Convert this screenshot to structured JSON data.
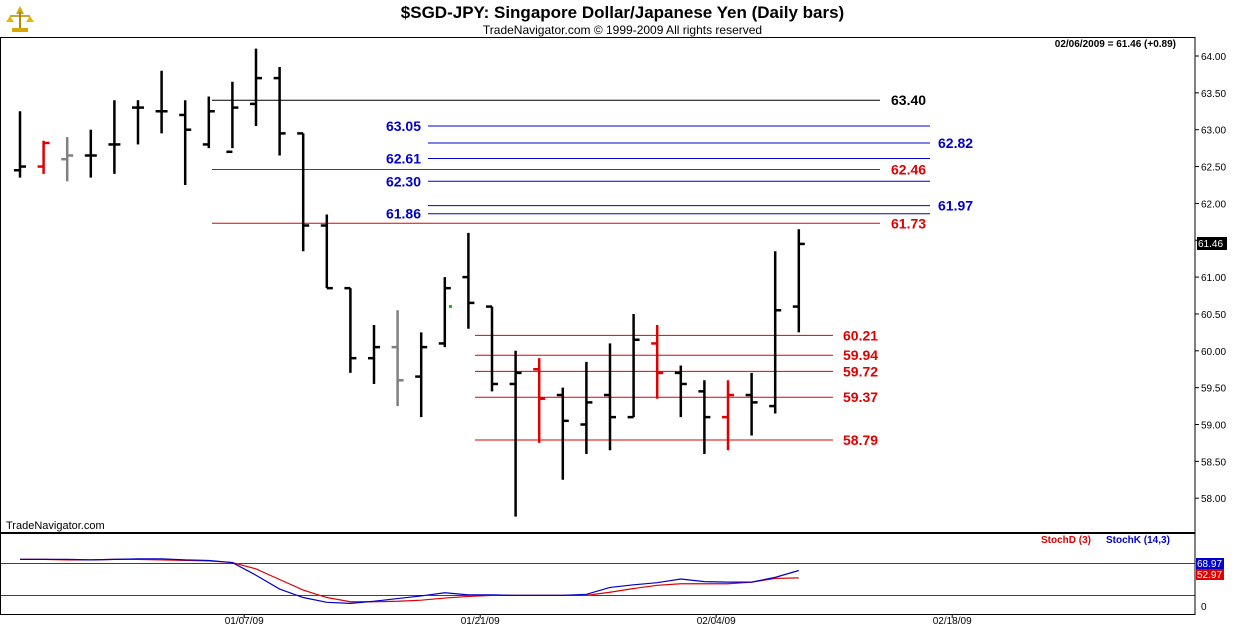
{
  "title": "$SGD-JPY:  Singapore Dollar/Japanese Yen  (Daily bars)",
  "subtitle": "TradeNavigator.com © 1999-2009 All rights reserved",
  "watermark": "TradeNavigator.com",
  "last_quote": "02/06/2009 = 61.46 (+0.89)",
  "price_tag": "61.46",
  "colors": {
    "bar": "#000000",
    "down_bar": "#e00000",
    "neutral_bar": "#808080",
    "support": "#e00000",
    "fib": "#0000cc",
    "resistance": "#000000",
    "stochD": "#e00000",
    "stochK": "#0000cc"
  },
  "chart_data": [
    {
      "type": "bar",
      "title": "$SGD-JPY:  Singapore Dollar/Japanese Yen  (Daily bars)",
      "ylim": [
        57.7,
        64.1
      ],
      "y_ticks": [
        "64.00",
        "63.50",
        "63.00",
        "62.50",
        "62.00",
        "61.50",
        "61.00",
        "60.50",
        "60.00",
        "59.50",
        "59.00",
        "58.50",
        "58.00"
      ],
      "x_ticks": [
        "01/07/09",
        "01/21/09",
        "02/04/09",
        "02/18/09"
      ],
      "bars": [
        {
          "o": 62.45,
          "h": 63.25,
          "l": 62.35,
          "c": 62.5,
          "color": "black"
        },
        {
          "o": 62.5,
          "h": 62.85,
          "l": 62.4,
          "c": 62.82,
          "color": "red"
        },
        {
          "o": 62.6,
          "h": 62.9,
          "l": 62.3,
          "c": 62.65,
          "color": "gray"
        },
        {
          "o": 62.65,
          "h": 63.0,
          "l": 62.35,
          "c": 62.65,
          "color": "black"
        },
        {
          "o": 62.8,
          "h": 63.4,
          "l": 62.4,
          "c": 62.8,
          "color": "black"
        },
        {
          "o": 63.3,
          "h": 63.4,
          "l": 62.8,
          "c": 63.3,
          "color": "black"
        },
        {
          "o": 63.25,
          "h": 63.8,
          "l": 62.95,
          "c": 63.25,
          "color": "black"
        },
        {
          "o": 63.2,
          "h": 63.4,
          "l": 62.25,
          "c": 63.0,
          "color": "black"
        },
        {
          "o": 62.8,
          "h": 63.45,
          "l": 62.75,
          "c": 63.25,
          "color": "black"
        },
        {
          "o": 62.7,
          "h": 63.65,
          "l": 62.75,
          "c": 63.3,
          "color": "black"
        },
        {
          "o": 63.35,
          "h": 64.1,
          "l": 63.05,
          "c": 63.7,
          "color": "black"
        },
        {
          "o": 63.7,
          "h": 63.85,
          "l": 62.65,
          "c": 62.95,
          "color": "black"
        },
        {
          "o": 62.95,
          "h": 62.95,
          "l": 61.35,
          "c": 61.7,
          "color": "black"
        },
        {
          "o": 61.7,
          "h": 61.85,
          "l": 60.85,
          "c": 60.85,
          "color": "black"
        },
        {
          "o": 60.85,
          "h": 60.85,
          "l": 59.7,
          "c": 59.9,
          "color": "black"
        },
        {
          "o": 59.9,
          "h": 60.35,
          "l": 59.55,
          "c": 60.05,
          "color": "black"
        },
        {
          "o": 60.05,
          "h": 60.55,
          "l": 59.25,
          "c": 59.6,
          "color": "gray"
        },
        {
          "o": 59.65,
          "h": 60.25,
          "l": 59.1,
          "c": 60.05,
          "color": "black"
        },
        {
          "o": 60.1,
          "h": 61.0,
          "l": 60.05,
          "c": 60.85,
          "color": "black"
        },
        {
          "o": 61.0,
          "h": 61.6,
          "l": 60.3,
          "c": 60.65,
          "color": "black"
        },
        {
          "o": 60.6,
          "h": 60.6,
          "l": 59.45,
          "c": 59.55,
          "color": "black"
        },
        {
          "o": 59.55,
          "h": 60.0,
          "l": 57.75,
          "c": 59.7,
          "color": "black"
        },
        {
          "o": 59.75,
          "h": 59.9,
          "l": 58.75,
          "c": 59.35,
          "color": "red"
        },
        {
          "o": 59.4,
          "h": 59.5,
          "l": 58.25,
          "c": 59.05,
          "color": "black"
        },
        {
          "o": 59.0,
          "h": 59.85,
          "l": 58.6,
          "c": 59.3,
          "color": "black"
        },
        {
          "o": 59.4,
          "h": 60.1,
          "l": 58.65,
          "c": 59.1,
          "color": "black"
        },
        {
          "o": 59.1,
          "h": 60.5,
          "l": 59.1,
          "c": 60.15,
          "color": "black"
        },
        {
          "o": 60.1,
          "h": 60.35,
          "l": 59.35,
          "c": 59.7,
          "color": "red"
        },
        {
          "o": 59.7,
          "h": 59.8,
          "l": 59.1,
          "c": 59.55,
          "color": "black"
        },
        {
          "o": 59.45,
          "h": 59.6,
          "l": 58.6,
          "c": 59.1,
          "color": "black"
        },
        {
          "o": 59.1,
          "h": 59.6,
          "l": 58.65,
          "c": 59.4,
          "color": "red"
        },
        {
          "o": 59.4,
          "h": 59.7,
          "l": 58.85,
          "c": 59.3,
          "color": "black"
        },
        {
          "o": 59.25,
          "h": 61.35,
          "l": 59.15,
          "c": 60.55,
          "color": "black"
        },
        {
          "o": 60.6,
          "h": 61.65,
          "l": 60.25,
          "c": 61.45,
          "color": "black"
        }
      ],
      "levels": [
        {
          "value": 63.4,
          "label": "63.40",
          "color": "black",
          "from_bar": 10
        },
        {
          "value": 63.05,
          "label": "63.05",
          "color": "blue",
          "from_bar": 19
        },
        {
          "value": 62.82,
          "label": "62.82",
          "color": "blue",
          "from_bar": 19
        },
        {
          "value": 62.61,
          "label": "62.61",
          "color": "blue",
          "from_bar": 19
        },
        {
          "value": 62.46,
          "label": "62.46",
          "color": "red",
          "from_bar": 10
        },
        {
          "value": 62.3,
          "label": "62.30",
          "color": "blue",
          "from_bar": 19
        },
        {
          "value": 61.97,
          "label": "61.97",
          "color": "blue",
          "from_bar": 19
        },
        {
          "value": 61.86,
          "label": "61.86",
          "color": "blue",
          "from_bar": 19
        },
        {
          "value": 61.73,
          "label": "61.73",
          "color": "red",
          "from_bar": 10
        },
        {
          "value": 60.21,
          "label": "60.21",
          "color": "red",
          "from_bar": 21
        },
        {
          "value": 59.94,
          "label": "59.94",
          "color": "red",
          "from_bar": 21
        },
        {
          "value": 59.72,
          "label": "59.72",
          "color": "red",
          "from_bar": 21
        },
        {
          "value": 59.37,
          "label": "59.37",
          "color": "red",
          "from_bar": 21
        },
        {
          "value": 58.79,
          "label": "58.79",
          "color": "red",
          "from_bar": 21
        }
      ]
    },
    {
      "type": "line",
      "ylim": [
        0,
        100
      ],
      "y_ticks": [
        "0"
      ],
      "legend": [
        "StochD (3)",
        "StochK (14,3)"
      ],
      "value_labels": [
        "68.97",
        "52.97"
      ],
      "series": [
        {
          "name": "StochD (3)",
          "values": [
            88,
            88,
            87,
            87,
            88,
            88,
            87,
            86,
            85,
            82,
            70,
            50,
            30,
            16,
            8,
            8,
            9,
            11,
            15,
            18,
            20,
            20,
            20,
            20,
            20,
            26,
            33,
            39,
            42,
            42,
            42,
            45,
            52,
            53
          ]
        },
        {
          "name": "StochK (14,3)",
          "values": [
            88,
            88,
            88,
            87,
            88,
            89,
            89,
            87,
            86,
            82,
            58,
            32,
            16,
            7,
            5,
            9,
            14,
            19,
            25,
            21,
            21,
            20,
            20,
            20,
            22,
            35,
            40,
            44,
            51,
            46,
            45,
            45,
            54,
            67
          ]
        }
      ]
    }
  ]
}
